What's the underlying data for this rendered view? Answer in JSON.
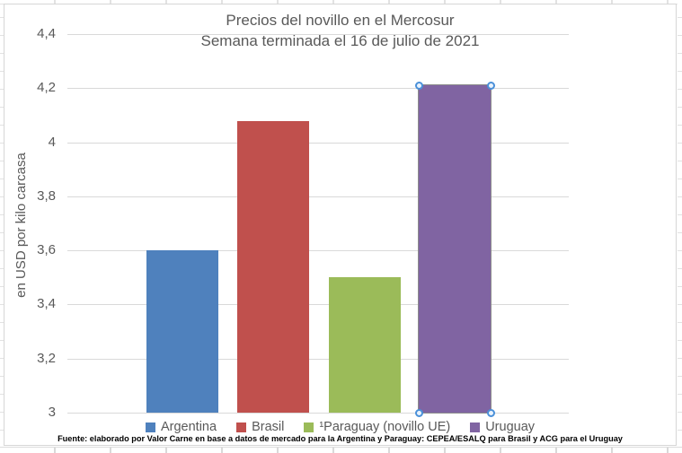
{
  "chart_data": {
    "type": "bar",
    "title": "Precios del novillo en el Mercosur",
    "subtitle": "Semana terminada el 16 de julio de 2021",
    "categories": [
      "Argentina",
      "Brasil",
      "Paraguay (novillo UE)",
      "Uruguay"
    ],
    "legend_labels": [
      "Argentina",
      "Brasil",
      "¹Paraguay (novillo UE)",
      "Uruguay"
    ],
    "values": [
      3.6,
      4.08,
      3.5,
      4.21
    ],
    "bar_colors": [
      "#4F81BD",
      "#C0504D",
      "#9BBB59",
      "#8064A2"
    ],
    "xlabel": "",
    "ylabel": "en USD por kilo carcasa",
    "ylim": [
      3.0,
      4.4
    ],
    "yticks": [
      {
        "label": "4,4",
        "value": 4.4
      },
      {
        "label": "4,2",
        "value": 4.2
      },
      {
        "label": "4",
        "value": 4.0
      },
      {
        "label": "3,8",
        "value": 3.8
      },
      {
        "label": "3,6",
        "value": 3.6
      },
      {
        "label": "3,4",
        "value": 3.4
      },
      {
        "label": "3,2",
        "value": 3.2
      },
      {
        "label": "3",
        "value": 3.0
      }
    ],
    "grid": true,
    "gridline_color": "#D9D9D9",
    "legend_position": "bottom",
    "decimal_separator": ",",
    "selected_series": "Uruguay",
    "selection_handle_color": "#4A90D9",
    "source_note": "Fuente: elaborado por Valor Carne en base a datos de mercado para la Argentina y Paraguay: CEPEA/ESALQ para Brasil y ACG para el Uruguay"
  },
  "text_colors": {
    "title": "#595959",
    "axis": "#595959",
    "source": "#000000"
  }
}
